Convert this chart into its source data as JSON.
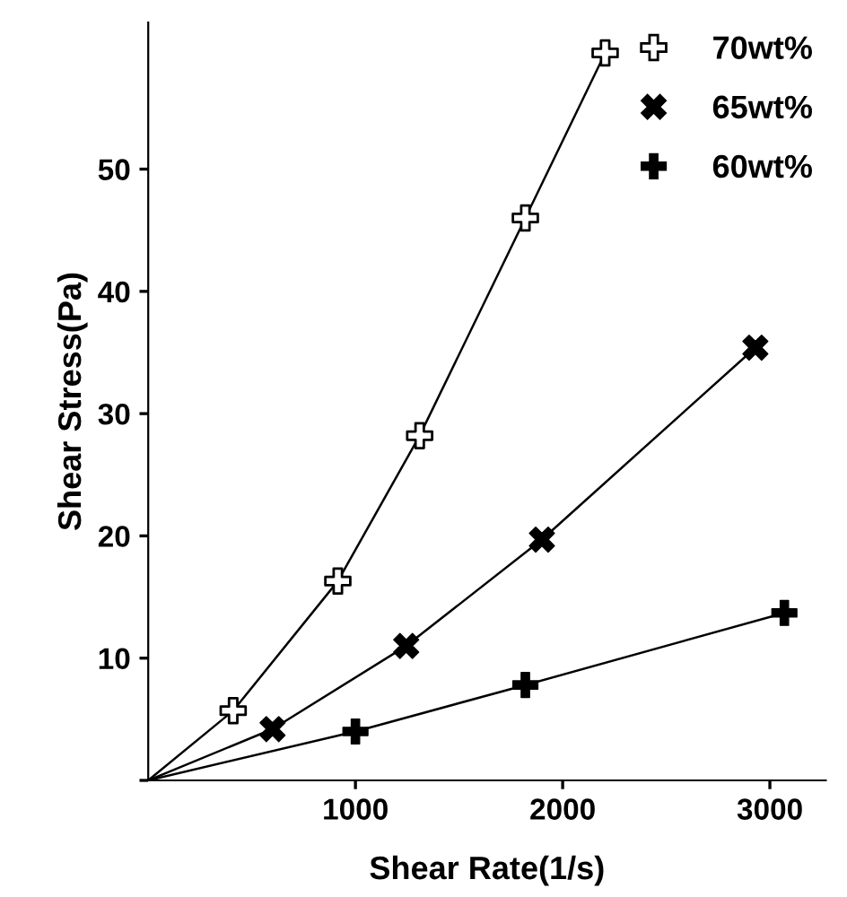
{
  "chart_data": {
    "type": "scatter",
    "xlabel": "Shear Rate(1/s)",
    "ylabel": "Shear Stress(Pa)",
    "xlim": [
      0,
      3270
    ],
    "ylim": [
      0,
      62
    ],
    "xticks": [
      1000,
      2000,
      3000
    ],
    "yticks": [
      {
        "value": 0,
        "label": null
      },
      10,
      20,
      30,
      40,
      50
    ],
    "grid": false,
    "legend": "top right",
    "series": [
      {
        "name": "70wt%",
        "color": "#000000",
        "marker": "cross",
        "x": [
          410,
          915,
          1310,
          1820,
          2205
        ],
        "values": [
          5.7,
          16.3,
          28.2,
          46,
          59.5
        ]
      },
      {
        "name": "65wt%",
        "color": "#000000",
        "marker": "cross",
        "x": [
          600,
          1245,
          1900,
          2930
        ],
        "values": [
          4.2,
          11,
          19.7,
          35.4
        ]
      },
      {
        "name": "60wt%",
        "color": "#000000",
        "marker": "cross",
        "x": [
          1000,
          1820,
          3070
        ],
        "values": [
          4.0,
          7.8,
          13.7
        ]
      },
      {
        "type": "line",
        "color": "#000000",
        "marker": "none",
        "x": [
          0,
          410,
          915,
          1310,
          1820,
          2205
        ],
        "values": [
          0,
          5.7,
          16.3,
          28.2,
          46,
          59.5
        ]
      },
      {
        "type": "line",
        "color": "#000000",
        "marker": "none",
        "x": [
          0,
          600,
          1245,
          1900,
          2930
        ],
        "values": [
          0,
          4.2,
          11,
          19.7,
          35.4
        ]
      },
      {
        "type": "line",
        "color": "#000000",
        "marker": "none",
        "x": [
          0,
          1000,
          1820,
          3070
        ],
        "values": [
          0,
          4.0,
          7.8,
          13.7
        ]
      }
    ]
  }
}
